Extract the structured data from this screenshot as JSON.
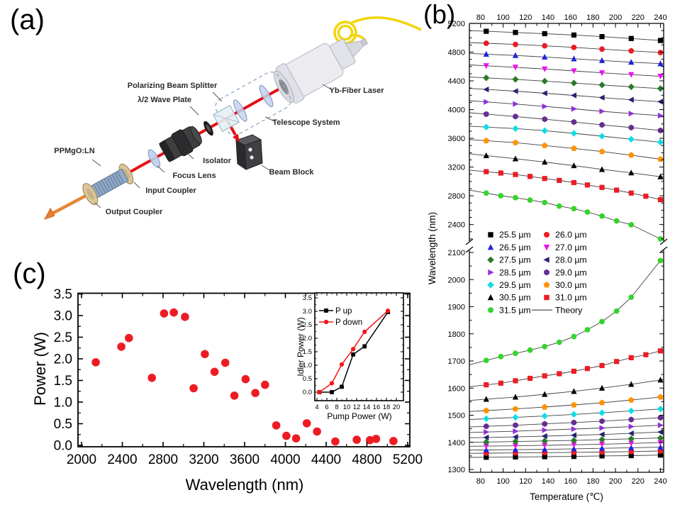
{
  "figure": {
    "panel_labels": {
      "a": "(a)",
      "b": "(b)",
      "c": "(c)"
    }
  },
  "panel_a": {
    "labels": [
      {
        "id": "pbs",
        "text": "Polarizing Beam Splitter"
      },
      {
        "id": "hwp",
        "text": "λ/2 Wave Plate"
      },
      {
        "id": "telescope",
        "text": "Telescope System"
      },
      {
        "id": "laser",
        "text": "Yb-Fiber Laser"
      },
      {
        "id": "isolator",
        "text": "Isolator"
      },
      {
        "id": "beamblock",
        "text": "Beam Block"
      },
      {
        "id": "focuslens",
        "text": "Focus Lens"
      },
      {
        "id": "input",
        "text": "Input Coupler"
      },
      {
        "id": "output",
        "text": "Output Coupler"
      },
      {
        "id": "crystal",
        "text": "PPMgO:LN"
      }
    ]
  },
  "chart_data": {
    "panel_b": {
      "type": "scatter",
      "xlabel": "Temperature (℃)",
      "ylabel": "Wavelength (nm)",
      "x_range": [
        70,
        243
      ],
      "x_ticks": [
        80,
        100,
        120,
        140,
        160,
        180,
        200,
        220,
        240
      ],
      "x_minor_step": 10,
      "y_axis_break": {
        "upper_range": [
          2170,
          5200
        ],
        "lower_range": [
          1290,
          2108
        ]
      },
      "y_ticks_upper": [
        2400,
        2800,
        3200,
        3600,
        4000,
        4400,
        4800,
        5200
      ],
      "y_upper_minor_step": 100,
      "y_ticks_lower": [
        1300,
        1400,
        1500,
        1600,
        1700,
        1800,
        1900,
        2000,
        2100
      ],
      "y_lower_minor_step": 50,
      "theory_label": "Theory",
      "theory_color": "#3f3f3f",
      "series": [
        {
          "label": "25.5 µm",
          "color": "#000000",
          "marker": "square",
          "T": [
            85,
            111,
            137,
            163,
            188,
            214,
            240
          ],
          "idler": [
            5090,
            5074,
            5057,
            5038,
            5016,
            4990,
            4962
          ],
          "signal": [
            1345,
            1346,
            1347,
            1348,
            1350,
            1351,
            1353
          ]
        },
        {
          "label": "26.0 µm",
          "color": "#ed1c24",
          "marker": "circle",
          "T": [
            85,
            111,
            137,
            163,
            188,
            214,
            240
          ],
          "idler": [
            4924,
            4908,
            4888,
            4866,
            4842,
            4818,
            4794
          ],
          "signal": [
            1360,
            1361,
            1362,
            1363,
            1364,
            1366,
            1368
          ]
        },
        {
          "label": "26.5 µm",
          "color": "#2121de",
          "marker": "tri-up",
          "T": [
            85,
            111,
            137,
            163,
            188,
            214,
            240
          ],
          "idler": [
            4772,
            4754,
            4732,
            4708,
            4684,
            4660,
            4640
          ],
          "signal": [
            1372,
            1373,
            1374,
            1376,
            1378,
            1380,
            1382
          ]
        },
        {
          "label": "27.0 µm",
          "color": "#ee11ee",
          "marker": "tri-down",
          "T": [
            85,
            111,
            137,
            163,
            188,
            214,
            240
          ],
          "idler": [
            4610,
            4589,
            4565,
            4539,
            4512,
            4487,
            4464
          ],
          "signal": [
            1386,
            1387,
            1389,
            1391,
            1393,
            1396,
            1399
          ]
        },
        {
          "label": "27.5 µm",
          "color": "#2a7a2a",
          "marker": "diamond",
          "T": [
            85,
            111,
            137,
            163,
            188,
            214,
            240
          ],
          "idler": [
            4442,
            4421,
            4396,
            4370,
            4343,
            4317,
            4293
          ],
          "signal": [
            1401,
            1403,
            1405,
            1407,
            1410,
            1413,
            1416
          ]
        },
        {
          "label": "28.0 µm",
          "color": "#232370",
          "marker": "tri-left",
          "T": [
            85,
            111,
            137,
            163,
            188,
            214,
            240
          ],
          "idler": [
            4281,
            4257,
            4228,
            4198,
            4167,
            4137,
            4110
          ],
          "signal": [
            1418,
            1420,
            1423,
            1426,
            1429,
            1433,
            1438
          ]
        },
        {
          "label": "28.5 µm",
          "color": "#9130d9",
          "marker": "tri-right",
          "T": [
            85,
            111,
            137,
            163,
            188,
            214,
            240
          ],
          "idler": [
            4107,
            4078,
            4044,
            4010,
            3976,
            3944,
            3916
          ],
          "signal": [
            1438,
            1441,
            1445,
            1449,
            1453,
            1458,
            1463
          ]
        },
        {
          "label": "29.0 µm",
          "color": "#662d91",
          "marker": "hexagon",
          "T": [
            85,
            111,
            137,
            163,
            188,
            214,
            240
          ],
          "idler": [
            3937,
            3904,
            3866,
            3827,
            3787,
            3750,
            3710
          ],
          "signal": [
            1459,
            1463,
            1468,
            1473,
            1478,
            1484,
            1491
          ]
        },
        {
          "label": "29.5 µm",
          "color": "#10dce6",
          "marker": "diamond",
          "T": [
            85,
            111,
            137,
            163,
            188,
            214,
            240
          ],
          "idler": [
            3757,
            3736,
            3706,
            3670,
            3630,
            3588,
            3546
          ],
          "signal": [
            1487,
            1492,
            1497,
            1503,
            1509,
            1516,
            1523
          ]
        },
        {
          "label": "30.0 µm",
          "color": "#ff9205",
          "marker": "pentagon",
          "T": [
            85,
            111,
            137,
            163,
            188,
            214,
            240
          ],
          "idler": [
            3567,
            3540,
            3500,
            3460,
            3416,
            3366,
            3310
          ],
          "signal": [
            1517,
            1523,
            1530,
            1538,
            1546,
            1556,
            1567
          ]
        },
        {
          "label": "30.5 µm",
          "color": "#000000",
          "marker": "tri-up",
          "T": [
            85,
            111,
            137,
            163,
            188,
            214,
            240
          ],
          "idler": [
            3360,
            3316,
            3270,
            3220,
            3168,
            3120,
            3066
          ],
          "signal": [
            1559,
            1567,
            1577,
            1588,
            1600,
            1614,
            1630
          ]
        },
        {
          "label": "31.0 µm",
          "color": "#ed1c24",
          "marker": "square",
          "T": [
            85,
            98,
            111,
            124,
            137,
            150,
            163,
            175,
            188,
            201,
            214,
            227,
            240
          ],
          "idler": [
            3136,
            3117,
            3096,
            3070,
            3041,
            3014,
            2984,
            2951,
            2917,
            2879,
            2838,
            2794,
            2746
          ],
          "signal": [
            1612,
            1618,
            1627,
            1636,
            1645,
            1653,
            1662,
            1672,
            1683,
            1698,
            1712,
            1723,
            1737
          ]
        },
        {
          "label": "31.5 µm",
          "color": "#35d42c",
          "marker": "circle",
          "no_extend_right": true,
          "T": [
            85,
            98,
            111,
            124,
            137,
            150,
            163,
            175,
            188,
            201,
            214,
            240
          ],
          "idler": [
            2838,
            2801,
            2774,
            2741,
            2706,
            2657,
            2621,
            2574,
            2517,
            2451,
            2397,
            2200
          ],
          "signal": [
            1702,
            1716,
            1728,
            1740,
            1753,
            1769,
            1790,
            1815,
            1845,
            1884,
            1935,
            2070
          ]
        }
      ]
    },
    "panel_c": {
      "type": "scatter",
      "xlabel": "Wavelength (nm)",
      "ylabel": "Power (W)",
      "x_ticks": [
        2000,
        2400,
        2800,
        3200,
        3600,
        4000,
        4400,
        4800,
        5200
      ],
      "y_ticks": [
        0.0,
        0.5,
        1.0,
        1.5,
        2.0,
        2.5,
        3.0,
        3.5
      ],
      "marker_color": "#ed1c24",
      "points": [
        [
          2140,
          1.92
        ],
        [
          2390,
          2.28
        ],
        [
          2465,
          2.48
        ],
        [
          2690,
          1.56
        ],
        [
          2810,
          3.05
        ],
        [
          2905,
          3.07
        ],
        [
          3015,
          2.97
        ],
        [
          3100,
          1.32
        ],
        [
          3210,
          2.11
        ],
        [
          3305,
          1.7
        ],
        [
          3410,
          1.91
        ],
        [
          3500,
          1.15
        ],
        [
          3610,
          1.53
        ],
        [
          3705,
          1.21
        ],
        [
          3800,
          1.4
        ],
        [
          3910,
          0.46
        ],
        [
          4010,
          0.22
        ],
        [
          4105,
          0.16
        ],
        [
          4210,
          0.51
        ],
        [
          4310,
          0.32
        ],
        [
          4490,
          0.09
        ],
        [
          4700,
          0.13
        ],
        [
          4830,
          0.12
        ],
        [
          4890,
          0.15
        ],
        [
          5060,
          0.1
        ]
      ],
      "inset": {
        "type": "line",
        "xlabel": "Pump Power (W)",
        "ylabel": "Idler Power (W)",
        "x_ticks": [
          4,
          6,
          8,
          10,
          12,
          14,
          16,
          18,
          20
        ],
        "y_ticks": [
          0.0,
          0.5,
          1.0,
          1.5,
          2.0,
          2.5,
          3.0,
          3.5
        ],
        "series": [
          {
            "name": "P up",
            "color": "#000000",
            "marker": "square",
            "x": [
              4.5,
              7,
              9,
              11.3,
              13.6,
              18.3
            ],
            "y": [
              0.0,
              0.0,
              0.2,
              1.4,
              1.7,
              2.97
            ]
          },
          {
            "name": "P down",
            "color": "#f21616",
            "marker": "circle",
            "x": [
              4.5,
              7,
              9,
              11.3,
              13.6,
              18.3
            ],
            "y": [
              0.0,
              0.33,
              1.03,
              1.6,
              2.24,
              3.02
            ]
          }
        ]
      }
    }
  }
}
